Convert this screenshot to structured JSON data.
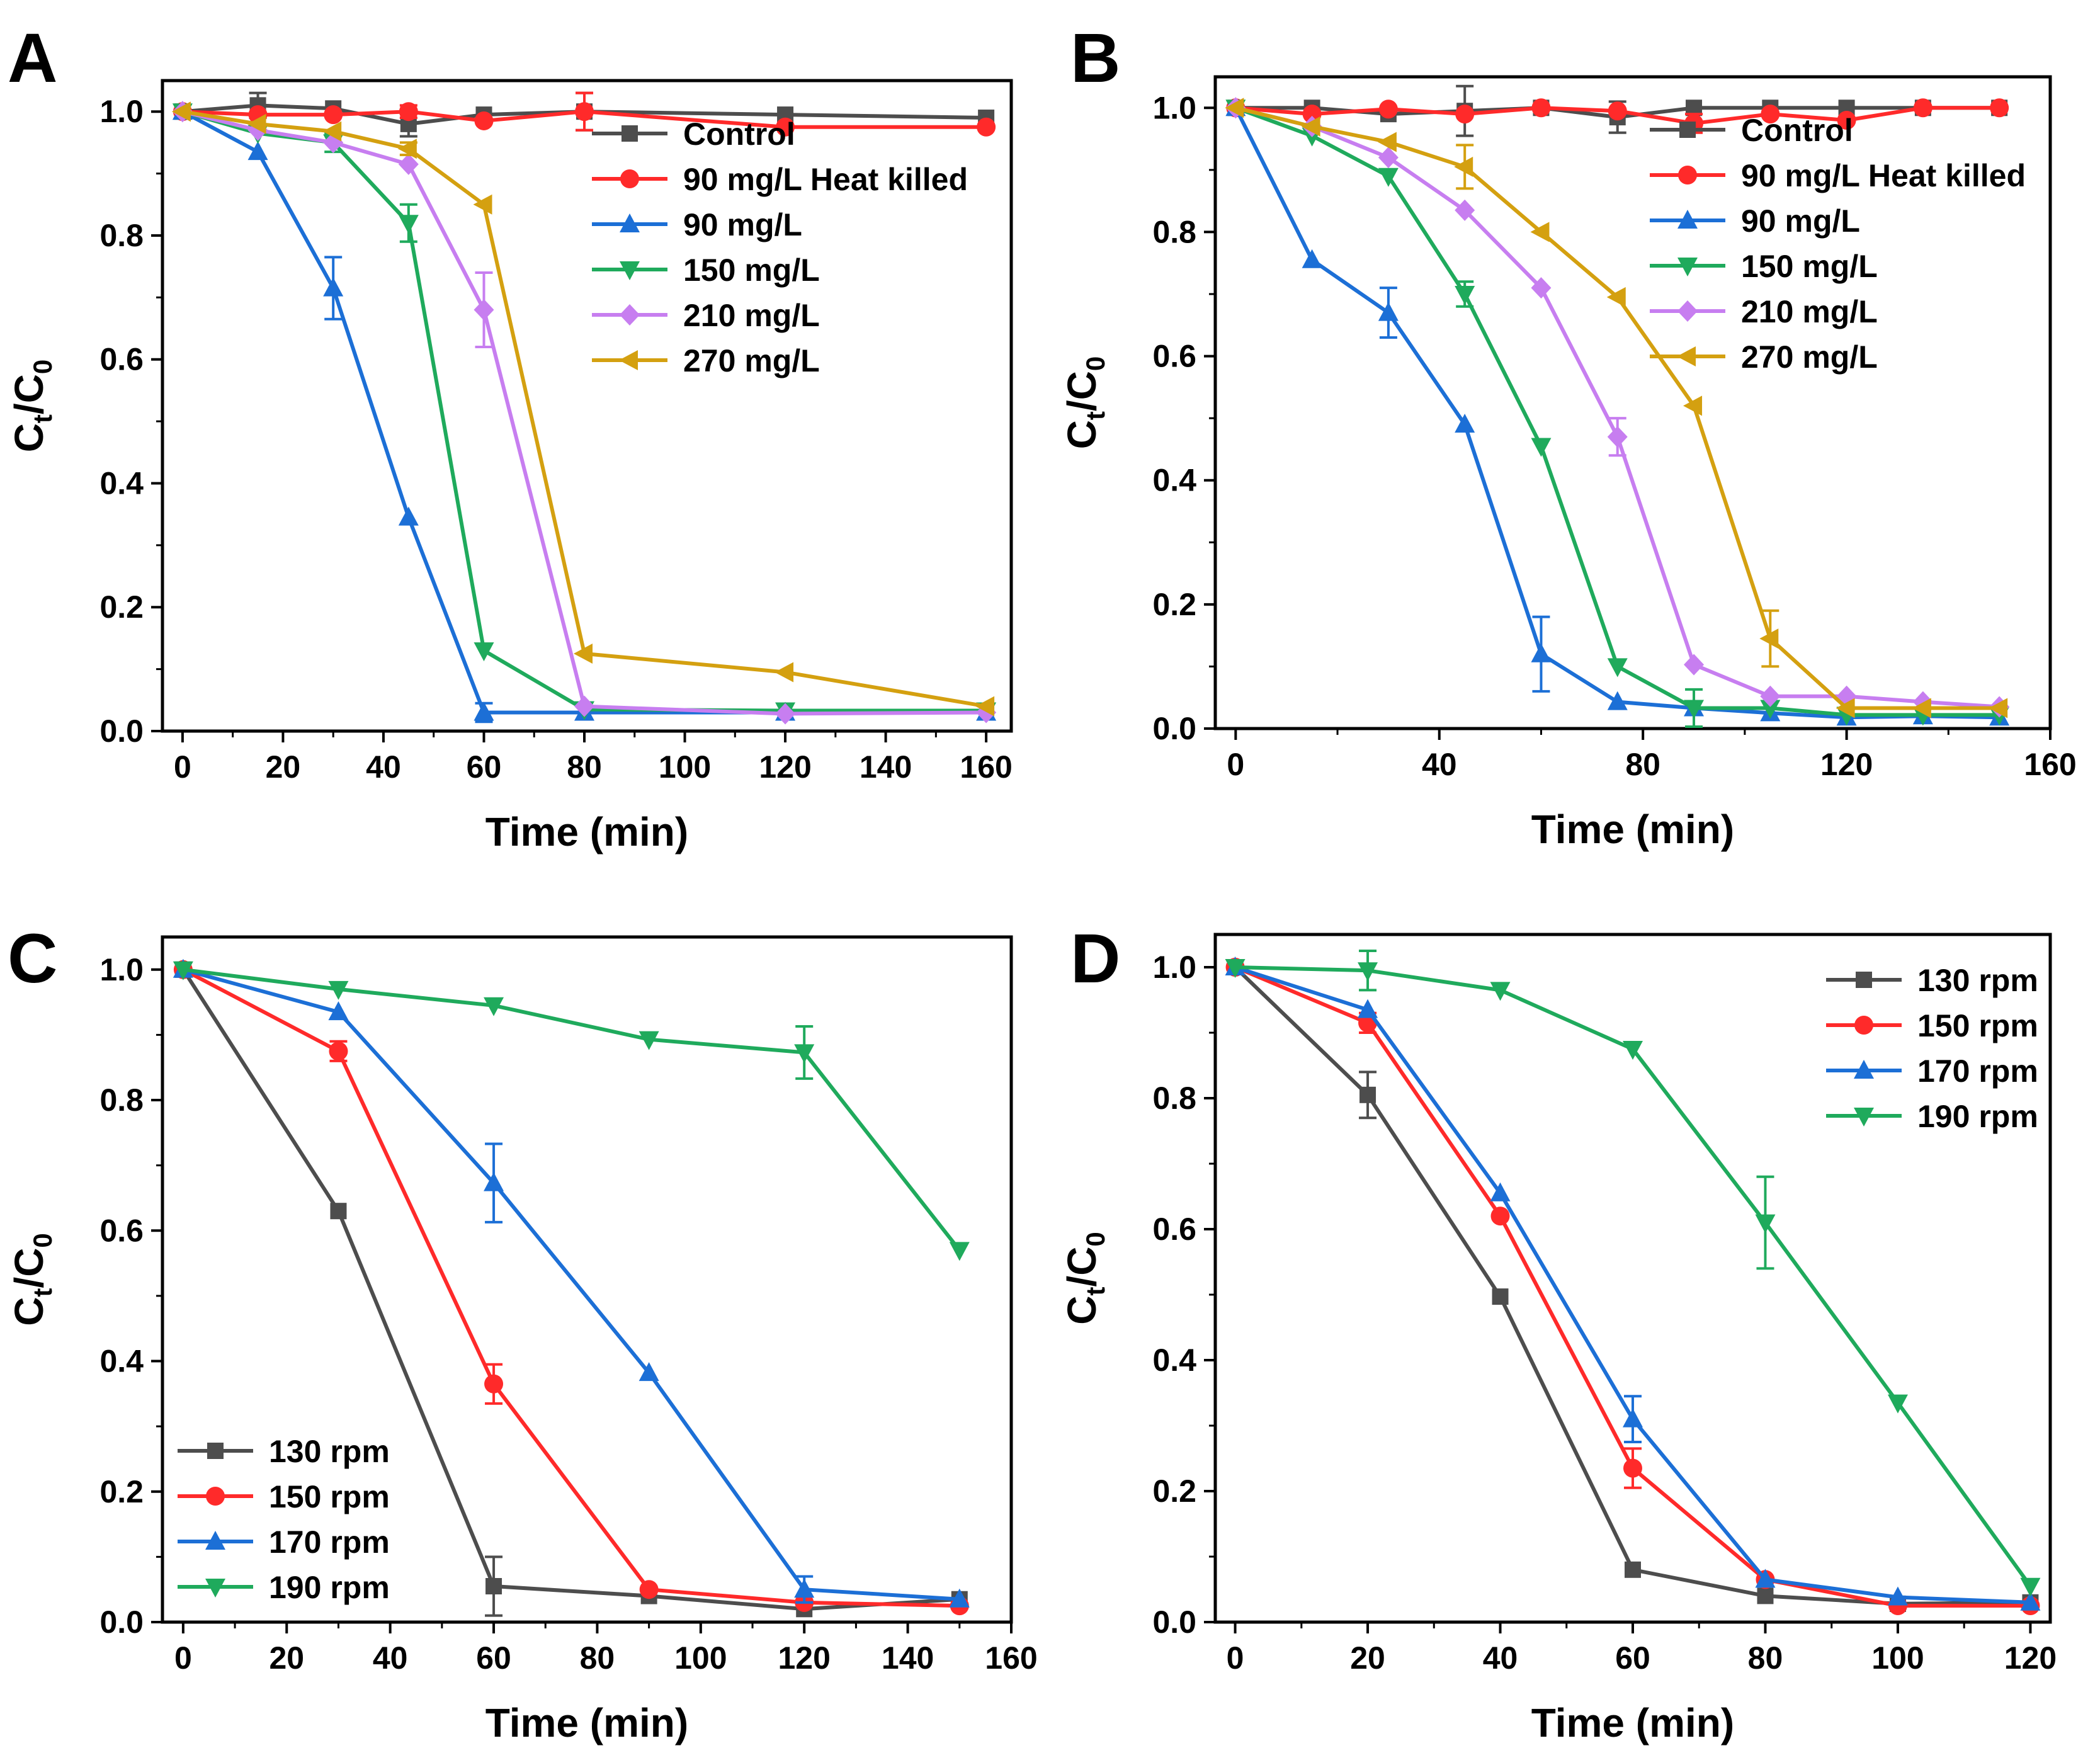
{
  "chart_data": [
    {
      "panel_label": "A",
      "type": "line",
      "xlabel": "Time (min)",
      "ylabel_main": "C",
      "ylabel_sub1": "t",
      "ylabel_mid": "/C",
      "ylabel_sub2": "0",
      "xlim": [
        -4,
        165
      ],
      "ylim": [
        0,
        1.05
      ],
      "xticks": [
        0,
        20,
        40,
        60,
        80,
        100,
        120,
        140,
        160
      ],
      "xminor": [
        10,
        30,
        50,
        70,
        90,
        110,
        130,
        150
      ],
      "yticks": [
        0.0,
        0.2,
        0.4,
        0.6,
        0.8,
        1.0
      ],
      "xtick_labels": [
        "0",
        "20",
        "40",
        "60",
        "80",
        "100",
        "120",
        "140",
        "160"
      ],
      "ytick_labels": [
        "0.0",
        "0.2",
        "0.4",
        "0.6",
        "0.8",
        "1.0"
      ],
      "legend_position": "top-right",
      "series": [
        {
          "name": "Control",
          "color": "#4d4d4d",
          "marker": "square",
          "x": [
            0,
            15,
            30,
            45,
            60,
            80,
            120,
            160
          ],
          "y": [
            1.0,
            1.01,
            1.005,
            0.98,
            0.995,
            1.0,
            0.995,
            0.99
          ],
          "err": [
            0,
            0.02,
            0,
            0.02,
            0,
            0.03,
            0,
            0
          ]
        },
        {
          "name": "90 mg/L Heat killed",
          "color": "#ff2a2a",
          "marker": "circle",
          "x": [
            0,
            15,
            30,
            45,
            60,
            80,
            120,
            160
          ],
          "y": [
            1.0,
            0.995,
            0.995,
            1.0,
            0.985,
            1.0,
            0.975,
            0.975
          ],
          "err": [
            0,
            0,
            0,
            0.01,
            0,
            0.03,
            0,
            0
          ]
        },
        {
          "name": "90 mg/L",
          "color": "#1c6fd6",
          "marker": "triangle-up",
          "x": [
            0,
            15,
            30,
            45,
            60,
            80,
            120,
            160
          ],
          "y": [
            1.0,
            0.935,
            0.715,
            0.345,
            0.03,
            0.03,
            0.03,
            0.03
          ],
          "err": [
            0,
            0,
            0.05,
            0,
            0.015,
            0,
            0,
            0
          ]
        },
        {
          "name": "150 mg/L",
          "color": "#1faa5c",
          "marker": "triangle-down",
          "x": [
            0,
            15,
            30,
            45,
            60,
            80,
            120,
            160
          ],
          "y": [
            1.0,
            0.965,
            0.95,
            0.82,
            0.13,
            0.035,
            0.033,
            0.033
          ],
          "err": [
            0,
            0,
            0.015,
            0.03,
            0,
            0,
            0,
            0
          ]
        },
        {
          "name": "210 mg/L",
          "color": "#c77ef0",
          "marker": "diamond",
          "x": [
            0,
            15,
            30,
            45,
            60,
            80,
            120,
            160
          ],
          "y": [
            1.0,
            0.97,
            0.95,
            0.915,
            0.68,
            0.04,
            0.028,
            0.03
          ],
          "err": [
            0,
            0,
            0,
            0,
            0.06,
            0,
            0,
            0
          ]
        },
        {
          "name": "270 mg/L",
          "color": "#d4a010",
          "marker": "triangle-left",
          "x": [
            0,
            15,
            30,
            45,
            60,
            80,
            120,
            160
          ],
          "y": [
            1.0,
            0.98,
            0.968,
            0.94,
            0.85,
            0.125,
            0.095,
            0.04
          ],
          "err": [
            0,
            0,
            0,
            0.01,
            0,
            0,
            0,
            0
          ]
        }
      ]
    },
    {
      "panel_label": "B",
      "type": "line",
      "xlabel": "Time (min)",
      "ylabel_main": "C",
      "ylabel_sub1": "t",
      "ylabel_mid": "/C",
      "ylabel_sub2": "0",
      "xlim": [
        -4,
        160
      ],
      "ylim": [
        0,
        1.05
      ],
      "xticks": [
        0,
        40,
        80,
        120,
        160
      ],
      "xminor": [
        20,
        60,
        100,
        140
      ],
      "yticks": [
        0.0,
        0.2,
        0.4,
        0.6,
        0.8,
        1.0
      ],
      "xtick_labels": [
        "0",
        "40",
        "80",
        "120",
        "160"
      ],
      "ytick_labels": [
        "0.0",
        "0.2",
        "0.4",
        "0.6",
        "0.8",
        "1.0"
      ],
      "legend_position": "top-right",
      "series": [
        {
          "name": "Control",
          "color": "#4d4d4d",
          "marker": "square",
          "x": [
            0,
            15,
            30,
            45,
            60,
            75,
            90,
            105,
            120,
            135,
            150
          ],
          "y": [
            1.0,
            1.0,
            0.99,
            0.995,
            1.0,
            0.985,
            1.0,
            1.0,
            1.0,
            1.0,
            1.0
          ],
          "err": [
            0,
            0,
            0,
            0.04,
            0,
            0.025,
            0,
            0,
            0,
            0,
            0
          ]
        },
        {
          "name": "90 mg/L Heat killed",
          "color": "#ff2a2a",
          "marker": "circle",
          "x": [
            0,
            15,
            30,
            45,
            60,
            75,
            90,
            105,
            120,
            135,
            150
          ],
          "y": [
            1.0,
            0.99,
            0.998,
            0.99,
            1.0,
            0.995,
            0.975,
            0.99,
            0.98,
            1.0,
            1.0
          ],
          "err": [
            0,
            0,
            0,
            0,
            0,
            0,
            0.015,
            0,
            0,
            0,
            0
          ]
        },
        {
          "name": "90 mg/L",
          "color": "#1c6fd6",
          "marker": "triangle-up",
          "x": [
            0,
            15,
            30,
            45,
            60,
            75,
            90,
            105,
            120,
            135,
            150
          ],
          "y": [
            1.0,
            0.755,
            0.67,
            0.49,
            0.12,
            0.043,
            0.033,
            0.025,
            0.018,
            0.02,
            0.018
          ],
          "err": [
            0,
            0,
            0.04,
            0,
            0.06,
            0,
            0,
            0,
            0,
            0,
            0
          ]
        },
        {
          "name": "150 mg/L",
          "color": "#1faa5c",
          "marker": "triangle-down",
          "x": [
            0,
            15,
            30,
            45,
            60,
            75,
            90,
            105,
            120,
            135,
            150
          ],
          "y": [
            1.0,
            0.955,
            0.89,
            0.7,
            0.455,
            0.1,
            0.033,
            0.033,
            0.022,
            0.022,
            0.022
          ],
          "err": [
            0,
            0,
            0,
            0.02,
            0,
            0,
            0.03,
            0,
            0,
            0,
            0
          ]
        },
        {
          "name": "210 mg/L",
          "color": "#c77ef0",
          "marker": "diamond",
          "x": [
            0,
            15,
            30,
            45,
            60,
            75,
            90,
            105,
            120,
            135,
            150
          ],
          "y": [
            1.0,
            0.97,
            0.92,
            0.835,
            0.71,
            0.47,
            0.103,
            0.052,
            0.052,
            0.043,
            0.035
          ],
          "err": [
            0,
            0,
            0,
            0,
            0,
            0.03,
            0,
            0,
            0,
            0,
            0
          ]
        },
        {
          "name": "270 mg/L",
          "color": "#d4a010",
          "marker": "triangle-left",
          "x": [
            0,
            15,
            30,
            45,
            60,
            75,
            90,
            105,
            120,
            135,
            150
          ],
          "y": [
            1.0,
            0.97,
            0.945,
            0.905,
            0.8,
            0.695,
            0.52,
            0.145,
            0.033,
            0.033,
            0.033
          ],
          "err": [
            0,
            0,
            0,
            0.035,
            0,
            0,
            0,
            0.045,
            0,
            0,
            0
          ]
        }
      ]
    },
    {
      "panel_label": "C",
      "type": "line",
      "xlabel": "Time (min)",
      "ylabel_main": "C",
      "ylabel_sub1": "t",
      "ylabel_mid": "/C",
      "ylabel_sub2": "0",
      "xlim": [
        -4,
        160
      ],
      "ylim": [
        0,
        1.05
      ],
      "xticks": [
        0,
        20,
        40,
        60,
        80,
        100,
        120,
        140,
        160
      ],
      "xminor": [
        10,
        30,
        50,
        70,
        90,
        110,
        130,
        150
      ],
      "yticks": [
        0.0,
        0.2,
        0.4,
        0.6,
        0.8,
        1.0
      ],
      "xtick_labels": [
        "0",
        "20",
        "40",
        "60",
        "80",
        "100",
        "120",
        "140",
        "160"
      ],
      "ytick_labels": [
        "0.0",
        "0.2",
        "0.4",
        "0.6",
        "0.8",
        "1.0"
      ],
      "legend_position": "bottom-left",
      "series": [
        {
          "name": "130 rpm",
          "color": "#4d4d4d",
          "marker": "square",
          "x": [
            0,
            30,
            60,
            90,
            120,
            150
          ],
          "y": [
            1.0,
            0.63,
            0.055,
            0.04,
            0.02,
            0.035
          ],
          "err": [
            0,
            0,
            0.045,
            0,
            0,
            0
          ]
        },
        {
          "name": "150 rpm",
          "color": "#ff2a2a",
          "marker": "circle",
          "x": [
            0,
            30,
            60,
            90,
            120,
            150
          ],
          "y": [
            1.0,
            0.875,
            0.365,
            0.05,
            0.03,
            0.025
          ],
          "err": [
            0,
            0.015,
            0.03,
            0,
            0,
            0
          ]
        },
        {
          "name": "170 rpm",
          "color": "#1c6fd6",
          "marker": "triangle-up",
          "x": [
            0,
            30,
            60,
            90,
            120,
            150
          ],
          "y": [
            1.0,
            0.935,
            0.673,
            0.382,
            0.05,
            0.035
          ],
          "err": [
            0,
            0,
            0.06,
            0,
            0.02,
            0
          ]
        },
        {
          "name": "190 rpm",
          "color": "#1faa5c",
          "marker": "triangle-down",
          "x": [
            0,
            30,
            60,
            90,
            120,
            150
          ],
          "y": [
            1.0,
            0.97,
            0.945,
            0.893,
            0.873,
            0.57
          ],
          "err": [
            0,
            0,
            0,
            0,
            0.04,
            0
          ]
        }
      ]
    },
    {
      "panel_label": "D",
      "type": "line",
      "xlabel": "Time (min)",
      "ylabel_main": "C",
      "ylabel_sub1": "t",
      "ylabel_mid": "/C",
      "ylabel_sub2": "0",
      "xlim": [
        -3,
        123
      ],
      "ylim": [
        0,
        1.05
      ],
      "xticks": [
        0,
        20,
        40,
        60,
        80,
        100,
        120
      ],
      "xminor": [
        10,
        30,
        50,
        70,
        90,
        110
      ],
      "yticks": [
        0.0,
        0.2,
        0.4,
        0.6,
        0.8,
        1.0
      ],
      "xtick_labels": [
        "0",
        "20",
        "40",
        "60",
        "80",
        "100",
        "120"
      ],
      "ytick_labels": [
        "0.0",
        "0.2",
        "0.4",
        "0.6",
        "0.8",
        "1.0"
      ],
      "legend_position": "top-right",
      "series": [
        {
          "name": "130 rpm",
          "color": "#4d4d4d",
          "marker": "square",
          "x": [
            0,
            20,
            40,
            60,
            80,
            100,
            120
          ],
          "y": [
            1.0,
            0.805,
            0.497,
            0.08,
            0.04,
            0.028,
            0.03
          ],
          "err": [
            0,
            0.035,
            0,
            0,
            0,
            0,
            0
          ]
        },
        {
          "name": "150 rpm",
          "color": "#ff2a2a",
          "marker": "circle",
          "x": [
            0,
            20,
            40,
            60,
            80,
            100,
            120
          ],
          "y": [
            1.0,
            0.915,
            0.62,
            0.235,
            0.065,
            0.025,
            0.025
          ],
          "err": [
            0,
            0.015,
            0,
            0.03,
            0,
            0,
            0
          ]
        },
        {
          "name": "170 rpm",
          "color": "#1c6fd6",
          "marker": "triangle-up",
          "x": [
            0,
            20,
            40,
            60,
            80,
            100,
            120
          ],
          "y": [
            1.0,
            0.935,
            0.655,
            0.31,
            0.065,
            0.038,
            0.03
          ],
          "err": [
            0,
            0,
            0,
            0.035,
            0,
            0,
            0
          ]
        },
        {
          "name": "190 rpm",
          "color": "#1faa5c",
          "marker": "triangle-down",
          "x": [
            0,
            20,
            40,
            60,
            80,
            100,
            120
          ],
          "y": [
            1.0,
            0.995,
            0.965,
            0.875,
            0.61,
            0.335,
            0.055
          ],
          "err": [
            0,
            0.03,
            0,
            0,
            0.07,
            0,
            0
          ]
        }
      ]
    }
  ]
}
